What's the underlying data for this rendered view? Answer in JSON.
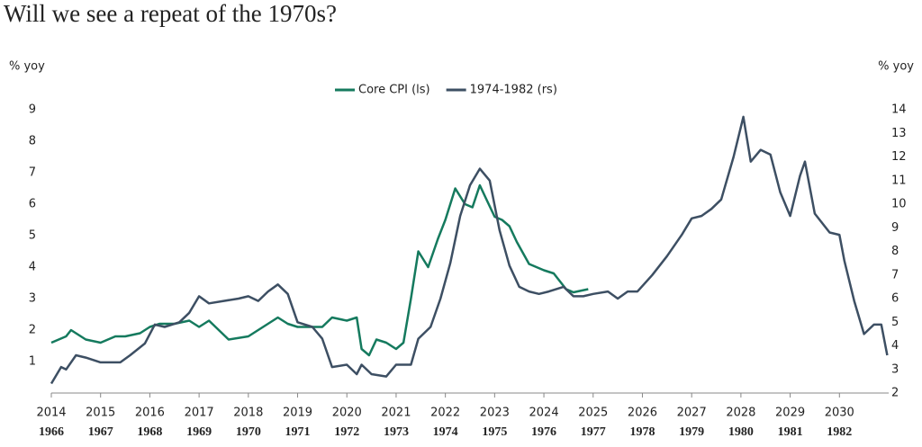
{
  "chart_data": {
    "type": "line",
    "title": "Will we see a repeat of the 1970s?",
    "y_label": "% yoy",
    "y2_label": "% yoy",
    "xlim": [
      2014,
      2031
    ],
    "xticks": [
      2014,
      2015,
      2016,
      2017,
      2018,
      2019,
      2020,
      2021,
      2022,
      2023,
      2024,
      2025,
      2026,
      2027,
      2028,
      2029,
      2030
    ],
    "x2ticks": [
      {
        "value": 2014,
        "label": "1966"
      },
      {
        "value": 2015,
        "label": "1967"
      },
      {
        "value": 2016,
        "label": "1968"
      },
      {
        "value": 2017,
        "label": "1969"
      },
      {
        "value": 2018,
        "label": "1970"
      },
      {
        "value": 2019,
        "label": "1971"
      },
      {
        "value": 2020,
        "label": "1972"
      },
      {
        "value": 2021,
        "label": "1973"
      },
      {
        "value": 2022,
        "label": "1974"
      },
      {
        "value": 2023,
        "label": "1975"
      },
      {
        "value": 2024,
        "label": "1976"
      },
      {
        "value": 2025,
        "label": "1977"
      },
      {
        "value": 2026,
        "label": "1978"
      },
      {
        "value": 2027,
        "label": "1979"
      },
      {
        "value": 2028,
        "label": "1980"
      },
      {
        "value": 2029,
        "label": "1981"
      },
      {
        "value": 2030,
        "label": "1982"
      }
    ],
    "ylim": [
      0,
      9
    ],
    "yticks": [
      1,
      2,
      3,
      4,
      5,
      6,
      7,
      8,
      9
    ],
    "y2lim": [
      2,
      14
    ],
    "y2ticks": [
      2,
      3,
      4,
      5,
      6,
      7,
      8,
      9,
      10,
      11,
      12,
      13,
      14
    ],
    "series": [
      {
        "name": "Core CPI (ls)",
        "color": "#157a5e",
        "axis": "y",
        "x": [
          2014.0,
          2014.3,
          2014.4,
          2014.7,
          2015.0,
          2015.3,
          2015.5,
          2015.8,
          2016.0,
          2016.2,
          2016.5,
          2016.8,
          2017.0,
          2017.2,
          2017.4,
          2017.6,
          2018.0,
          2018.3,
          2018.6,
          2018.8,
          2019.0,
          2019.3,
          2019.5,
          2019.7,
          2020.0,
          2020.2,
          2020.3,
          2020.45,
          2020.6,
          2020.8,
          2021.0,
          2021.15,
          2021.3,
          2021.45,
          2021.65,
          2021.85,
          2022.0,
          2022.2,
          2022.4,
          2022.55,
          2022.7,
          2022.85,
          2023.0,
          2023.15,
          2023.3,
          2023.45,
          2023.7,
          2024.0,
          2024.2,
          2024.45,
          2024.6,
          2024.9
        ],
        "values": [
          1.6,
          1.8,
          2.0,
          1.7,
          1.6,
          1.8,
          1.8,
          1.9,
          2.1,
          2.2,
          2.2,
          2.3,
          2.1,
          2.3,
          2.0,
          1.7,
          1.8,
          2.1,
          2.4,
          2.2,
          2.1,
          2.1,
          2.1,
          2.4,
          2.3,
          2.4,
          1.4,
          1.2,
          1.7,
          1.6,
          1.4,
          1.6,
          3.0,
          4.5,
          4.0,
          4.9,
          5.5,
          6.5,
          6.0,
          5.9,
          6.6,
          6.1,
          5.6,
          5.5,
          5.3,
          4.8,
          4.1,
          3.9,
          3.8,
          3.3,
          3.2,
          3.3
        ]
      },
      {
        "name": "1974-1982 (rs)",
        "color": "#3d4f63",
        "axis": "y2",
        "x": [
          2014.0,
          2014.2,
          2014.3,
          2014.5,
          2014.7,
          2015.0,
          2015.4,
          2015.6,
          2015.9,
          2016.1,
          2016.3,
          2016.6,
          2016.8,
          2017.0,
          2017.2,
          2017.5,
          2017.8,
          2018.0,
          2018.2,
          2018.4,
          2018.6,
          2018.8,
          2019.0,
          2019.3,
          2019.5,
          2019.7,
          2020.0,
          2020.2,
          2020.3,
          2020.5,
          2020.8,
          2021.0,
          2021.3,
          2021.45,
          2021.7,
          2021.9,
          2022.1,
          2022.3,
          2022.5,
          2022.7,
          2022.9,
          2023.1,
          2023.3,
          2023.5,
          2023.7,
          2023.9,
          2024.1,
          2024.4,
          2024.6,
          2024.8,
          2025.0,
          2025.3,
          2025.5,
          2025.7,
          2025.9,
          2026.2,
          2026.5,
          2026.8,
          2027.0,
          2027.2,
          2027.4,
          2027.6,
          2027.85,
          2028.05,
          2028.2,
          2028.4,
          2028.6,
          2028.8,
          2029.0,
          2029.2,
          2029.3,
          2029.5,
          2029.8,
          2030.0,
          2030.1,
          2030.3,
          2030.5,
          2030.7,
          2030.85,
          2030.97
        ],
        "values": [
          2.4,
          3.1,
          3.0,
          3.6,
          3.5,
          3.3,
          3.3,
          3.6,
          4.1,
          4.9,
          4.8,
          5.0,
          5.4,
          6.1,
          5.8,
          5.9,
          6.0,
          6.1,
          5.9,
          6.3,
          6.6,
          6.2,
          5.0,
          4.8,
          4.3,
          3.1,
          3.2,
          2.8,
          3.2,
          2.8,
          2.7,
          3.2,
          3.2,
          4.3,
          4.8,
          6.0,
          7.5,
          9.5,
          10.8,
          11.5,
          11.0,
          8.9,
          7.4,
          6.5,
          6.3,
          6.2,
          6.3,
          6.5,
          6.1,
          6.1,
          6.2,
          6.3,
          6.0,
          6.3,
          6.3,
          7.0,
          7.8,
          8.7,
          9.4,
          9.5,
          9.8,
          10.2,
          12.0,
          13.7,
          11.8,
          12.3,
          12.1,
          10.5,
          9.5,
          11.2,
          11.8,
          9.6,
          8.8,
          8.7,
          7.6,
          5.9,
          4.5,
          4.9,
          4.9,
          3.6
        ]
      }
    ]
  }
}
